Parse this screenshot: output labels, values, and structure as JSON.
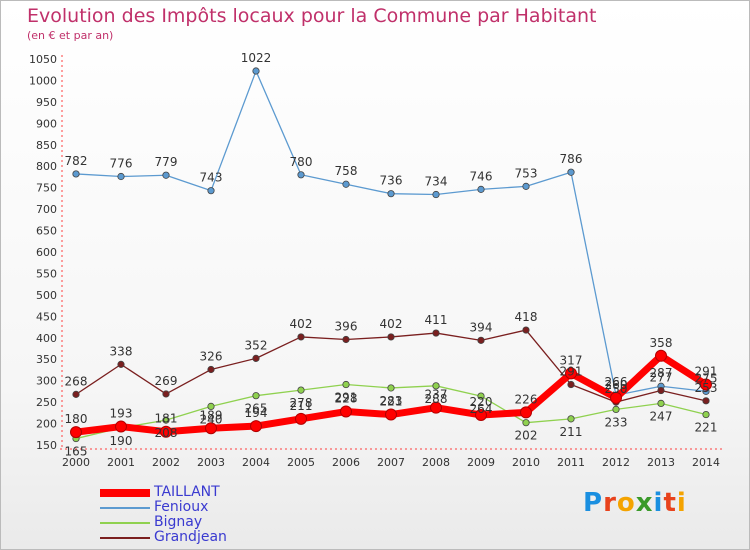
{
  "chart_data": {
    "type": "line",
    "title": "Evolution des Impôts locaux pour la Commune par Habitant",
    "subtitle": "(en € et par an)",
    "x": [
      "2000",
      "2001",
      "2002",
      "2003",
      "2004",
      "2005",
      "2006",
      "2007",
      "2008",
      "2009",
      "2010",
      "2011",
      "2012",
      "2013",
      "2014"
    ],
    "ylim": [
      150,
      1050
    ],
    "yticks": [
      150,
      200,
      250,
      300,
      350,
      400,
      450,
      500,
      550,
      600,
      650,
      700,
      750,
      800,
      850,
      900,
      950,
      1000,
      1050
    ],
    "grid": false,
    "legend_position": "bottom-left",
    "series": [
      {
        "name": "TAILLANT",
        "color": "#ff0000",
        "values": [
          180,
          193,
          181,
          189,
          194,
          211,
          228,
          221,
          237,
          220,
          226,
          317,
          260,
          358,
          291
        ]
      },
      {
        "name": "Fenioux",
        "color": "#5c9ad0",
        "values": [
          782,
          776,
          779,
          743,
          1022,
          780,
          758,
          736,
          734,
          746,
          753,
          786,
          266,
          287,
          275
        ]
      },
      {
        "name": "Bignay",
        "color": "#8fd14f",
        "values": [
          165,
          190,
          208,
          240,
          265,
          278,
          291,
          283,
          288,
          264,
          202,
          211,
          233,
          247,
          221
        ]
      },
      {
        "name": "Grandjean",
        "color": "#7a1f1f",
        "values": [
          268,
          338,
          269,
          326,
          352,
          402,
          396,
          402,
          411,
          394,
          418,
          291,
          250,
          277,
          253
        ]
      }
    ]
  },
  "logo": {
    "letters": [
      "P",
      "r",
      "o",
      "x",
      "i",
      "t",
      "i"
    ],
    "colors": [
      "#1a8fe0",
      "#e8421c",
      "#f4a300",
      "#3a9a2a",
      "#1a8fe0",
      "#e8421c",
      "#f4a300"
    ]
  }
}
